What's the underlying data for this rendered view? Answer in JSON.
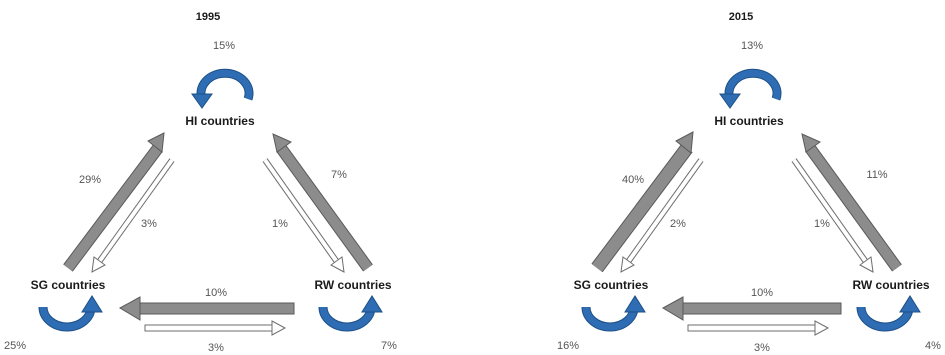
{
  "panels": [
    {
      "year": "1995",
      "nodes": {
        "hi": "HI countries",
        "sg": "SG countries",
        "rw": "RW countries"
      },
      "flows": {
        "hi_self": "15%",
        "sg_to_hi": "29%",
        "hi_to_sg": "3%",
        "rw_to_hi": "7%",
        "hi_to_rw": "1%",
        "rw_to_sg": "10%",
        "sg_to_rw": "3%",
        "sg_self": "25%",
        "rw_self": "7%"
      }
    },
    {
      "year": "2015",
      "nodes": {
        "hi": "HI countries",
        "sg": "SG countries",
        "rw": "RW countries"
      },
      "flows": {
        "hi_self": "13%",
        "sg_to_hi": "40%",
        "hi_to_sg": "2%",
        "rw_to_hi": "11%",
        "hi_to_rw": "1%",
        "rw_to_sg": "10%",
        "sg_to_rw": "3%",
        "sg_self": "16%",
        "rw_self": "4%"
      }
    }
  ],
  "colors": {
    "self_loop": "#2e6db3",
    "self_loop_edge": "#1d4f87",
    "main_arrow": "#8c8c8c",
    "main_arrow_edge": "#5a5a5a",
    "thin_arrow_fill": "#ffffff",
    "thin_arrow_edge": "#6e6e6e"
  }
}
